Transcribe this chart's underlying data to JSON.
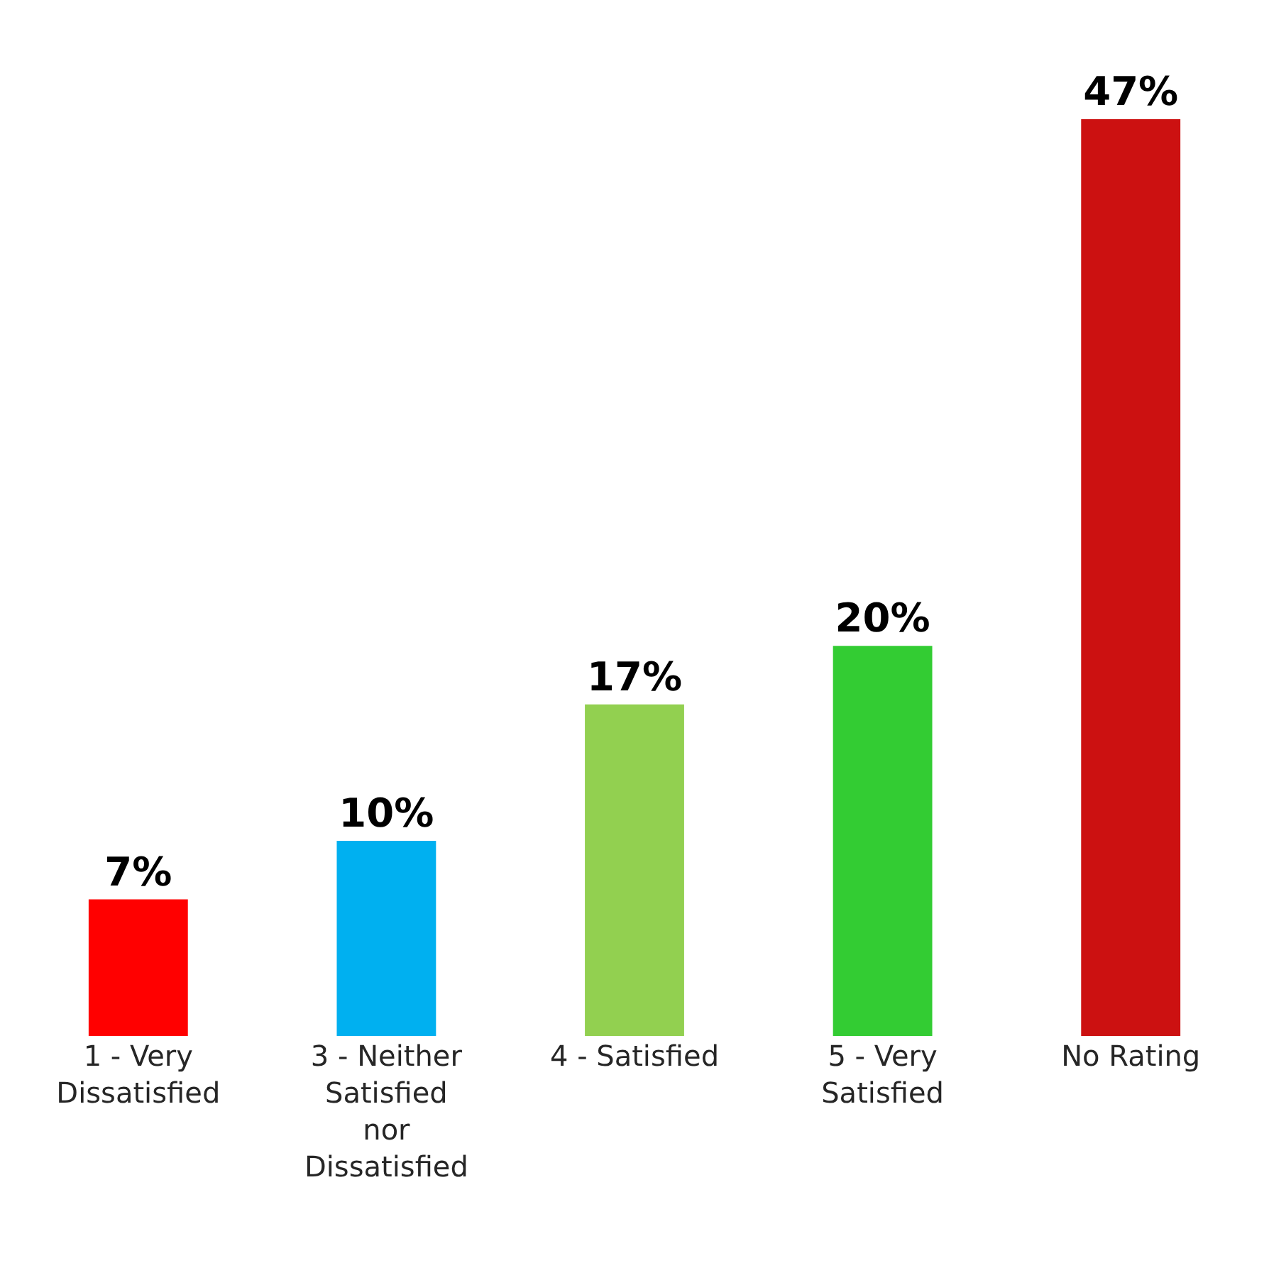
{
  "chart_data": {
    "type": "bar",
    "categories": [
      "1 - Very\nDissatisfied",
      "3 - Neither\nSatisfied\nnor\nDissatisfied",
      "4 - Satisfied",
      "5 - Very\nSatisfied",
      "No Rating"
    ],
    "values": [
      7,
      10,
      17,
      20,
      47
    ],
    "colors": [
      "#ff0000",
      "#00b0f0",
      "#92d050",
      "#33cc33",
      "#cc1111"
    ],
    "value_labels": [
      "7%",
      "10%",
      "17%",
      "20%",
      "47%"
    ]
  }
}
